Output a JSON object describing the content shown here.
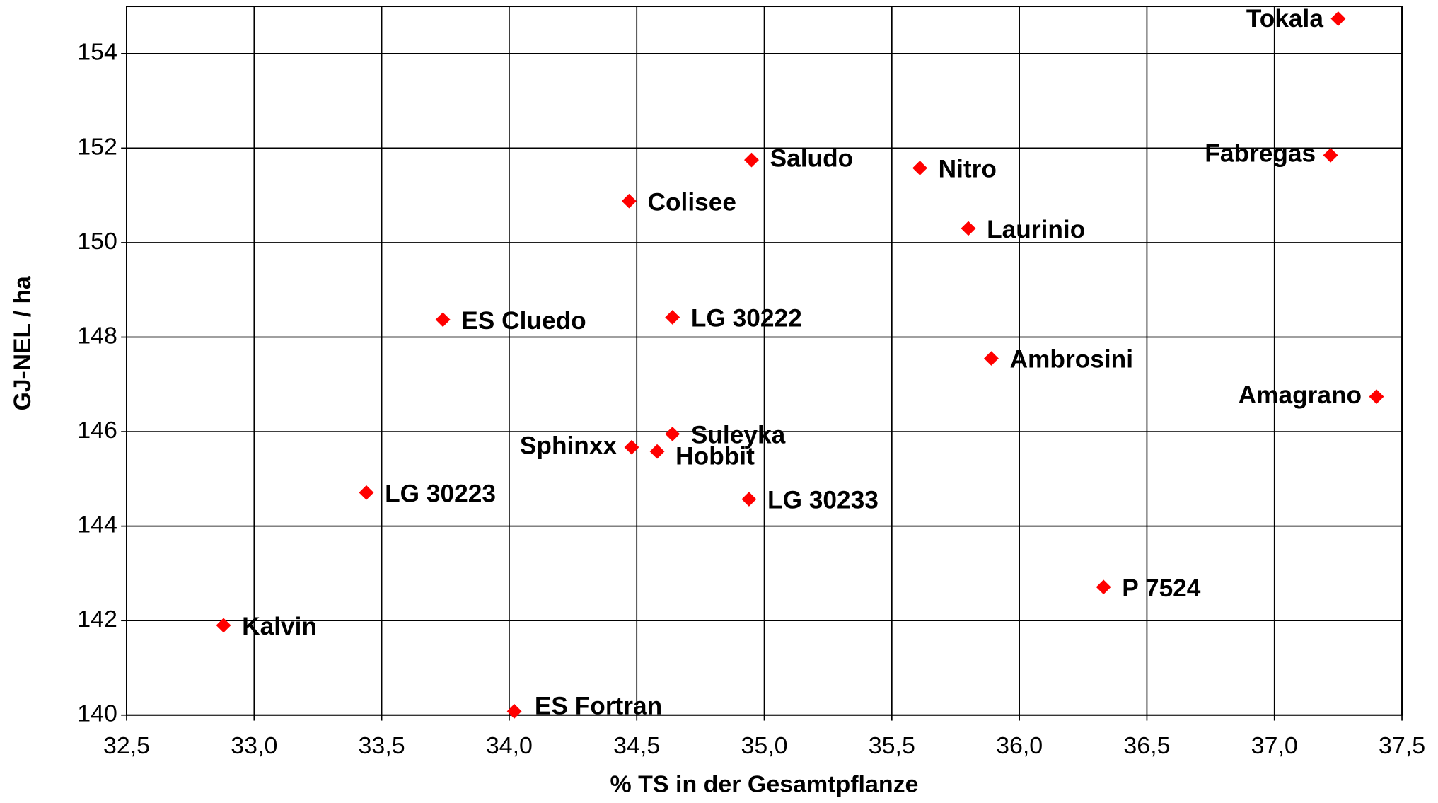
{
  "chart_data": {
    "type": "scatter",
    "xlabel": "% TS in der Gesamtpflanze",
    "ylabel": "GJ-NEL / ha",
    "xlim": [
      32.5,
      37.5
    ],
    "xticks": [
      {
        "value": 32.5,
        "label": "32,5"
      },
      {
        "value": 33.0,
        "label": "33,0"
      },
      {
        "value": 33.5,
        "label": "33,5"
      },
      {
        "value": 34.0,
        "label": "34,0"
      },
      {
        "value": 34.5,
        "label": "34,5"
      },
      {
        "value": 35.0,
        "label": "35,0"
      },
      {
        "value": 35.5,
        "label": "35,5"
      },
      {
        "value": 36.0,
        "label": "36,0"
      },
      {
        "value": 36.5,
        "label": "36,5"
      },
      {
        "value": 37.0,
        "label": "37,0"
      },
      {
        "value": 37.5,
        "label": "37,5"
      }
    ],
    "ylim": [
      140,
      155
    ],
    "yticks": [
      140,
      142,
      144,
      146,
      148,
      150,
      152,
      154
    ],
    "grid": true,
    "color": "#ff0000",
    "point_labels": [
      "Tokala",
      "Fabregas",
      "Saludo",
      "Nitro",
      "Colisee",
      "Laurinio",
      "ES Cluedo",
      "LG 30222",
      "Ambrosini",
      "Amagrano",
      "Suleyka",
      "Sphinxx",
      "Hobbit",
      "LG 30223",
      "LG 30233",
      "P 7524",
      "Kalvin",
      "ES Fortran"
    ],
    "x": [
      37.25,
      37.22,
      34.95,
      35.61,
      34.47,
      35.8,
      33.74,
      34.64,
      35.89,
      37.4,
      34.64,
      34.48,
      34.58,
      33.44,
      34.94,
      36.33,
      32.88,
      34.02
    ],
    "values": [
      154.74,
      151.85,
      151.75,
      151.58,
      150.88,
      150.3,
      148.37,
      148.42,
      147.55,
      146.74,
      145.95,
      145.67,
      145.58,
      144.71,
      144.57,
      142.71,
      141.9,
      140.08
    ]
  }
}
